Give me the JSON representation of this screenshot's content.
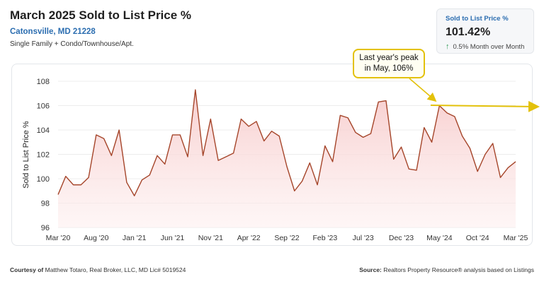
{
  "header": {
    "title": "March 2025 Sold to List Price %",
    "location": "Catonsville, MD 21228",
    "property_types": "Single Family + Condo/Townhouse/Apt."
  },
  "kpi": {
    "label": "Sold to List Price %",
    "value": "101.42%",
    "change": "0.5% Month over Month",
    "arrow_icon": "arrow-up-icon"
  },
  "annotation": {
    "line1": "Last year's peak",
    "line2": "in May, 106%"
  },
  "footer": {
    "courtesy_label": "Courtesy of",
    "courtesy_text": "Matthew Totaro, Real Broker, LLC, MD Lic# 5019524",
    "source_label": "Source:",
    "source_text": "Realtors Property Resource® analysis based on Listings"
  },
  "colors": {
    "line": "#a5452a",
    "fill": "#fbe3e3",
    "callout_border": "#e3c10a",
    "accent": "#2b6db0"
  },
  "chart_data": {
    "type": "area",
    "title": "March 2025 Sold to List Price %",
    "ylabel": "Sold to List Price %",
    "xlabel": "",
    "ylim": [
      96,
      108
    ],
    "yticks": [
      96,
      98,
      100,
      102,
      104,
      106,
      108
    ],
    "x_tick_labels": [
      "Mar '20",
      "Aug '20",
      "Jan '21",
      "Jun '21",
      "Nov '21",
      "Apr '22",
      "Sep '22",
      "Feb '23",
      "Jul '23",
      "Dec '23",
      "May '24",
      "Oct '24",
      "Mar '25"
    ],
    "grid": true,
    "x_start": "2020-03",
    "x_end": "2025-03",
    "series": [
      {
        "values": [
          98.7,
          100.2,
          99.5,
          99.5,
          100.1,
          103.6,
          103.3,
          101.9,
          104.0,
          99.7,
          98.6,
          99.9,
          100.3,
          101.9,
          101.2,
          103.6,
          103.6,
          101.8,
          107.3,
          101.9,
          104.9,
          101.5,
          101.8,
          102.1,
          104.9,
          104.3,
          104.7,
          103.1,
          103.9,
          103.5,
          101.0,
          99.0,
          99.8,
          101.3,
          99.5,
          102.7,
          101.4,
          105.2,
          105.0,
          103.8,
          103.4,
          103.7,
          106.3,
          106.4,
          101.6,
          102.6,
          100.8,
          100.7,
          104.2,
          103.0,
          106.0,
          105.4,
          105.1,
          103.5,
          102.5,
          100.6,
          102.0,
          102.9,
          100.1,
          100.9,
          101.4
        ]
      }
    ]
  }
}
